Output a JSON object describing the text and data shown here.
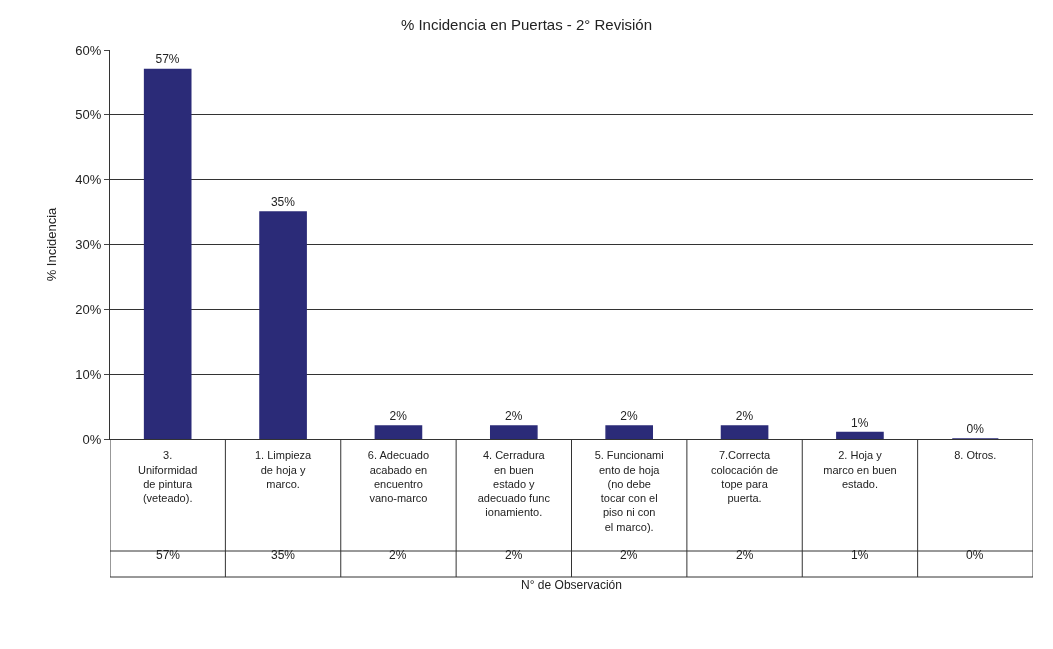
{
  "chart_data": {
    "type": "bar",
    "title": "% Incidencia en Puertas - 2° Revisión",
    "xlabel": "N° de Observación",
    "ylabel": "% Incidencia",
    "categories": [
      "3. Uniformidad de pintura (veteado).",
      "1. Limpieza de hoja y marco.",
      "6. Adecuado acabado en encuentro vano-marco",
      "4. Cerradura en buen estado y adecuado funcionamiento.",
      "5. Funcionamiento de hoja (no debe tocar con el piso ni con el marco).",
      "7.Correcta colocación de tope para puerta.",
      "2. Hoja y marco en buen estado.",
      "8. Otros."
    ],
    "values": [
      57,
      35,
      2,
      2,
      2,
      2,
      1,
      0
    ],
    "value_labels": [
      "57%",
      "35%",
      "2%",
      "2%",
      "2%",
      "2%",
      "1%",
      "0%"
    ],
    "color": "#2b2b78",
    "ylim": [
      0,
      60
    ],
    "yticks": [
      {
        "value": 0,
        "label": "0%"
      },
      {
        "value": 10,
        "label": "10%"
      },
      {
        "value": 20,
        "label": "20%"
      },
      {
        "value": 30,
        "label": "30%"
      },
      {
        "value": 40,
        "label": "40%"
      },
      {
        "value": 50,
        "label": "50%"
      },
      {
        "value": 60,
        "label": "60%"
      }
    ],
    "grid": "y",
    "legend": false
  }
}
